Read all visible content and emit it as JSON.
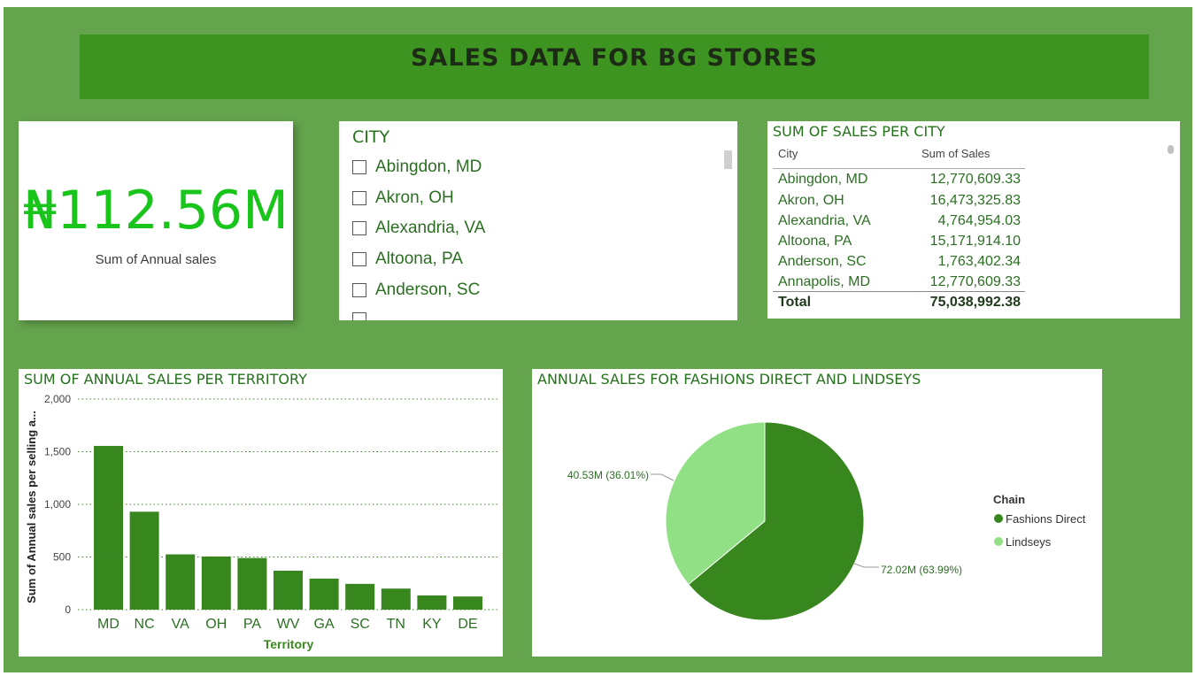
{
  "header": {
    "title": "SALES DATA FOR BG STORES"
  },
  "kpi": {
    "value": "₦112.56M",
    "label": "Sum of Annual sales"
  },
  "slicer": {
    "title": "CITY",
    "items": [
      "Abingdon, MD",
      "Akron, OH",
      "Alexandria, VA",
      "Altoona, PA",
      "Anderson, SC"
    ]
  },
  "table": {
    "title": "SUM OF SALES PER CITY",
    "columns": [
      "City",
      "Sum of Sales"
    ],
    "rows": [
      {
        "city": "Abingdon, MD",
        "sales": "12,770,609.33"
      },
      {
        "city": "Akron, OH",
        "sales": "16,473,325.83"
      },
      {
        "city": "Alexandria, VA",
        "sales": "4,764,954.03"
      },
      {
        "city": "Altoona, PA",
        "sales": "15,171,914.10"
      },
      {
        "city": "Anderson, SC",
        "sales": "1,763,402.34"
      },
      {
        "city": "Annapolis, MD",
        "sales": "12,770,609.33"
      }
    ],
    "total_label": "Total",
    "total_value": "75,038,992.38"
  },
  "colors": {
    "canvas": "#64a44d",
    "banner": "#3e9420",
    "bar": "#37861e",
    "pie_fashions": "#37861e",
    "pie_lindseys": "#92e085",
    "kpi": "#19c41b"
  },
  "chart_data": [
    {
      "type": "bar",
      "title": "SUM OF ANNUAL SALES PER TERRITORY",
      "xlabel": "Territory",
      "ylabel": "Sum of Annual sales per selling a...",
      "categories": [
        "MD",
        "NC",
        "VA",
        "OH",
        "PA",
        "WV",
        "GA",
        "SC",
        "TN",
        "KY",
        "DE"
      ],
      "values": [
        1555,
        930,
        525,
        505,
        490,
        370,
        295,
        245,
        200,
        135,
        125
      ],
      "ylim": [
        0,
        2000
      ],
      "yticks": [
        "0",
        "500",
        "1,000",
        "1,500",
        "2,000"
      ],
      "grid": true
    },
    {
      "type": "pie",
      "title": "ANNUAL SALES FOR FASHIONS DIRECT AND LINDSEYS",
      "legend_title": "Chain",
      "legend_position": "right",
      "slices": [
        {
          "name": "Fashions Direct",
          "value": 72.02,
          "label": "72.02M (63.99%)"
        },
        {
          "name": "Lindseys",
          "value": 40.53,
          "label": "40.53M (36.01%)"
        }
      ]
    }
  ]
}
